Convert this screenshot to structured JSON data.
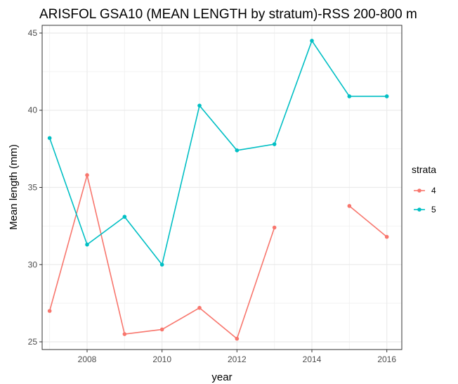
{
  "chart_data": {
    "type": "line",
    "title": "ARISFOL GSA10 (MEAN LENGTH by stratum)-RSS 200-800 m",
    "xlabel": "year",
    "ylabel": "Mean length (mm)",
    "xlim": [
      2006.8,
      2016.4
    ],
    "ylim": [
      24.5,
      45.5
    ],
    "x_ticks": [
      2008,
      2010,
      2012,
      2014,
      2016
    ],
    "y_ticks": [
      25,
      30,
      35,
      40,
      45
    ],
    "grid": true,
    "legend_title": "strata",
    "legend_position": "right",
    "series": [
      {
        "name": "4",
        "color": "#F8766D",
        "x": [
          2007,
          2008,
          2009,
          2010,
          2011,
          2012,
          2013,
          2014,
          2015,
          2016
        ],
        "y": [
          27.0,
          35.8,
          25.5,
          25.8,
          27.2,
          25.2,
          32.4,
          null,
          33.8,
          31.8
        ]
      },
      {
        "name": "5",
        "color": "#00BFC4",
        "x": [
          2007,
          2008,
          2009,
          2010,
          2011,
          2012,
          2013,
          2014,
          2015,
          2016
        ],
        "y": [
          38.2,
          31.3,
          33.1,
          30.0,
          40.3,
          37.4,
          37.8,
          44.5,
          40.9,
          40.9
        ]
      }
    ]
  }
}
